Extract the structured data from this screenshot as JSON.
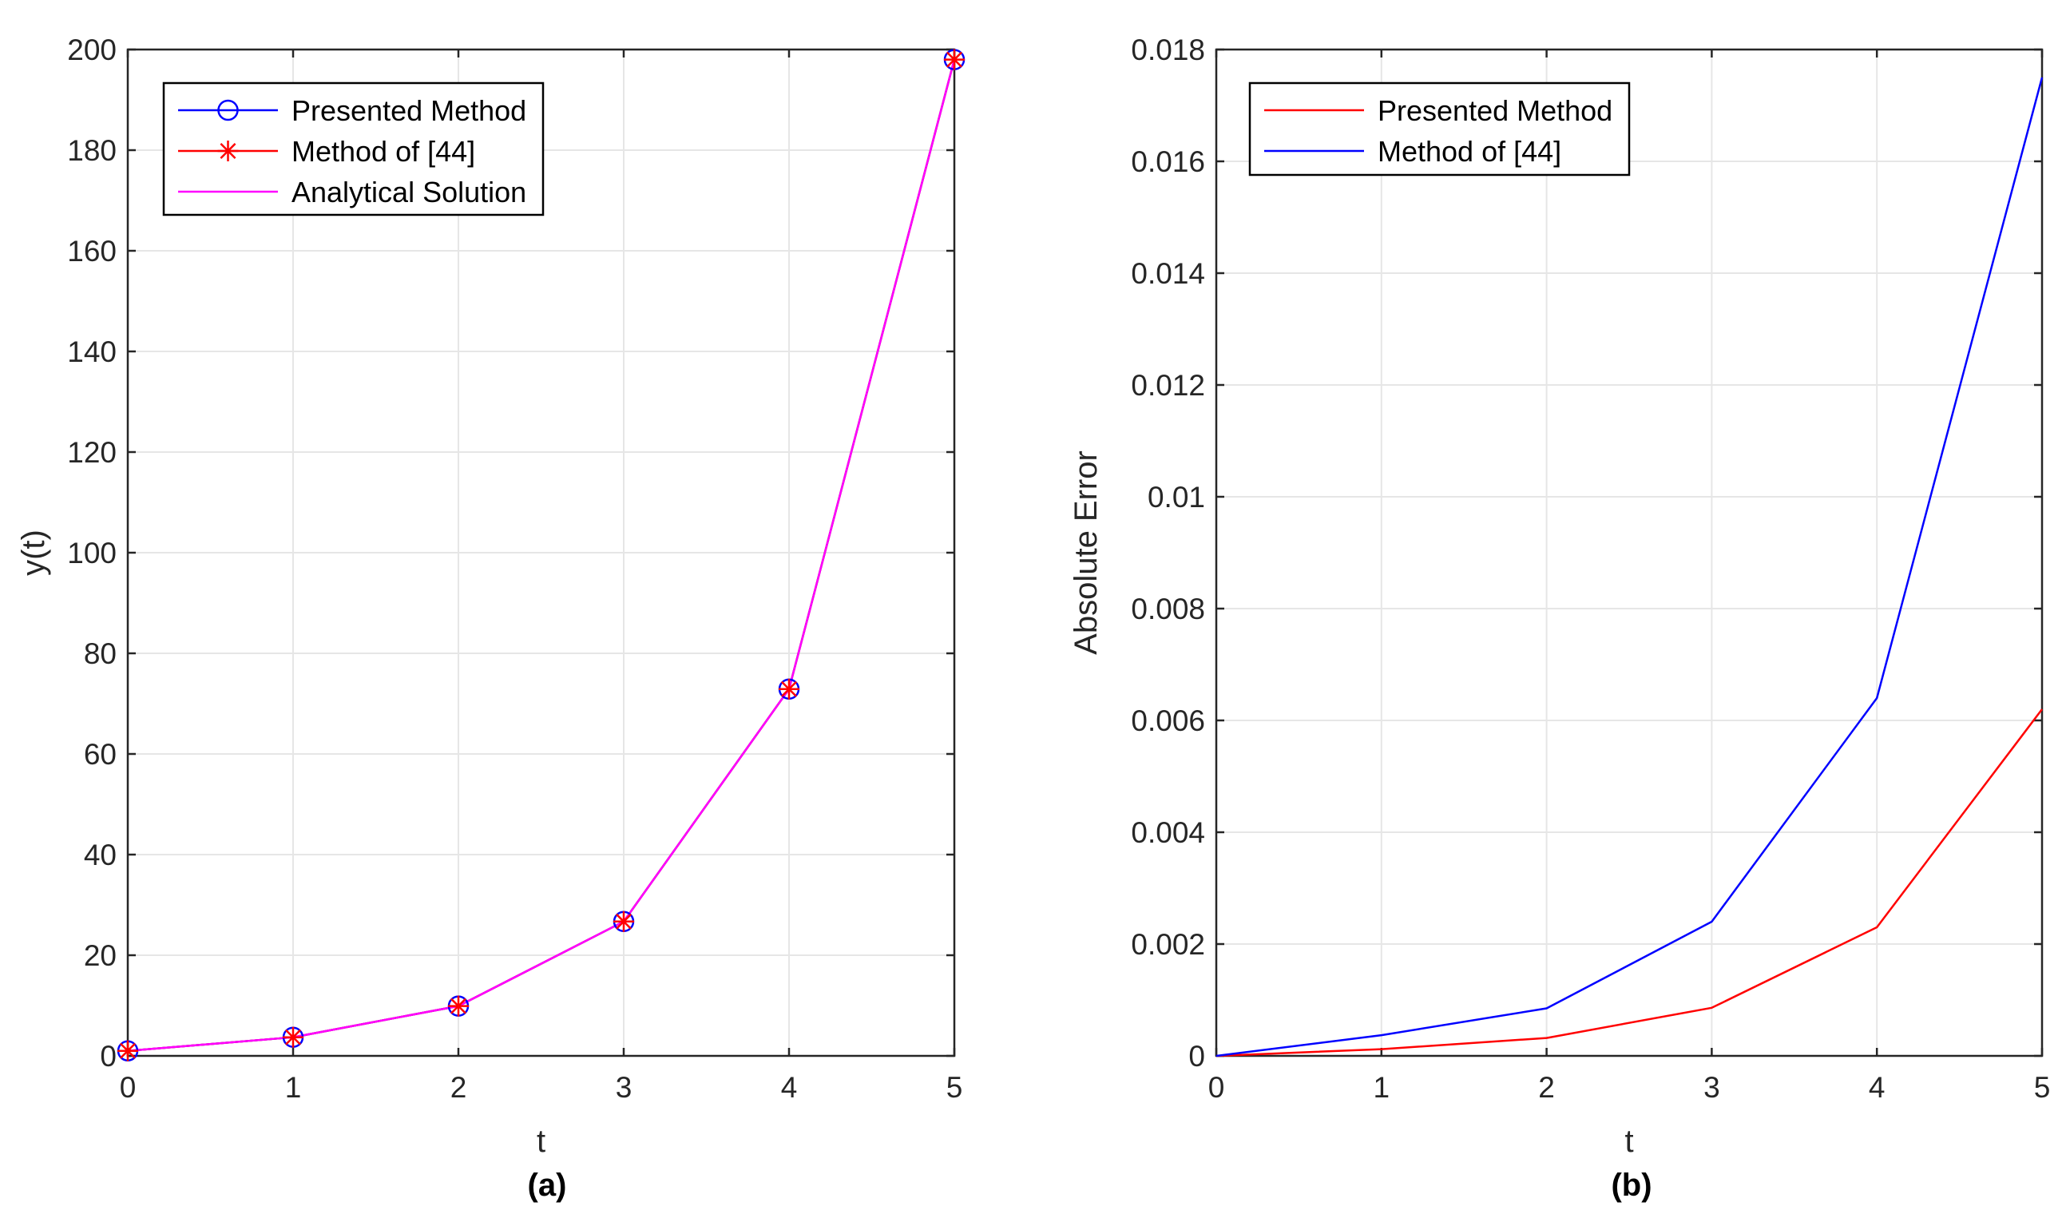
{
  "colors": {
    "presented": "#0000ff",
    "method44": "#ff0000",
    "analytical": "#ff00ff",
    "err_presented": "#ff0000",
    "err_method44": "#0000ff",
    "grid": "#e6e6e6",
    "axis": "#262626"
  },
  "chart_data": [
    {
      "type": "line",
      "panel_label": "(a)",
      "title": "",
      "xlabel": "t",
      "ylabel": "y(t)",
      "x": [
        0,
        1,
        2,
        3,
        4,
        5
      ],
      "xlim": [
        0,
        5
      ],
      "ylim": [
        0,
        200
      ],
      "xticks": [
        0,
        1,
        2,
        3,
        4,
        5
      ],
      "yticks": [
        0,
        20,
        40,
        60,
        80,
        100,
        120,
        140,
        160,
        180,
        200
      ],
      "grid": true,
      "legend_position": "top-left",
      "series": [
        {
          "name": "Presented Method",
          "marker": "circle",
          "values": [
            1.0,
            3.7,
            9.9,
            26.7,
            72.9,
            198.0
          ]
        },
        {
          "name": "Method of [44]",
          "marker": "star",
          "values": [
            1.0,
            3.7,
            9.9,
            26.7,
            72.9,
            198.0
          ]
        },
        {
          "name": "Analytical Solution",
          "marker": "none",
          "values": [
            1.0,
            3.7,
            9.9,
            26.7,
            72.9,
            198.0
          ]
        }
      ]
    },
    {
      "type": "line",
      "panel_label": "(b)",
      "title": "",
      "xlabel": "t",
      "ylabel": "Absolute Error",
      "x": [
        0,
        1,
        2,
        3,
        4,
        5
      ],
      "xlim": [
        0,
        5
      ],
      "ylim": [
        0,
        0.018
      ],
      "xticks": [
        0,
        1,
        2,
        3,
        4,
        5
      ],
      "yticks": [
        0,
        0.002,
        0.004,
        0.006,
        0.008,
        0.01,
        0.012,
        0.014,
        0.016,
        0.018
      ],
      "ytick_labels": [
        "0",
        "0.002",
        "0.004",
        "0.006",
        "0.008",
        "0.01",
        "0.012",
        "0.014",
        "0.016",
        "0.018"
      ],
      "grid": true,
      "legend_position": "top-left",
      "series": [
        {
          "name": "Presented Method",
          "marker": "none",
          "values": [
            0,
            0.00012,
            0.00032,
            0.00086,
            0.0023,
            0.0062
          ]
        },
        {
          "name": "Method of [44]",
          "marker": "none",
          "values": [
            0,
            0.00037,
            0.00085,
            0.0024,
            0.0064,
            0.0175
          ]
        }
      ]
    }
  ]
}
